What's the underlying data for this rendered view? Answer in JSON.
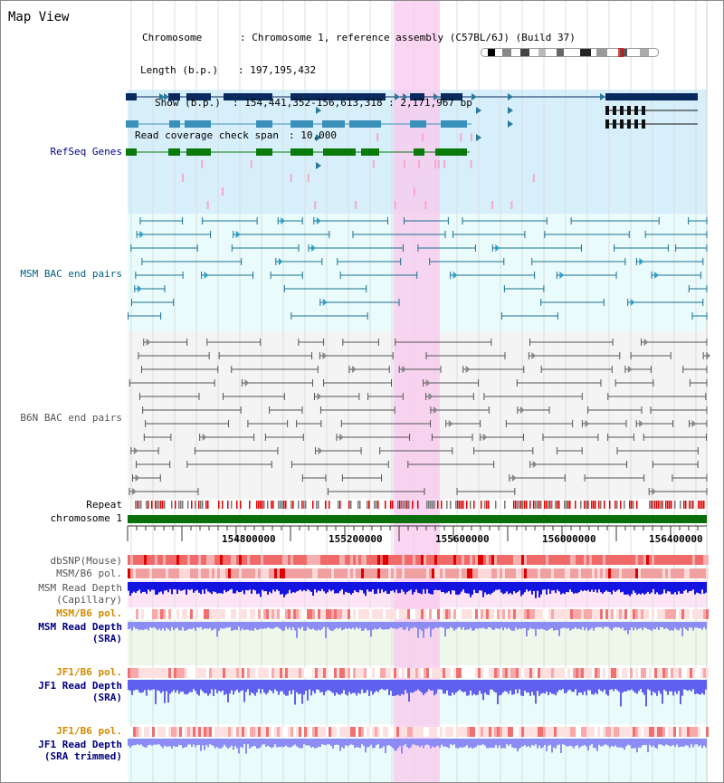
{
  "title": "Map View",
  "info": {
    "chromosome_key": "Chromosome",
    "chromosome_val": ": Chromosome 1, reference assembly (C57BL/6J) (Build 37)",
    "length_key": "Length (b.p.)",
    "length_val": ": 197,195,432",
    "show_key": "Show (b.p.)",
    "show_val": ": 154,441,352-156,613,318 : 2,171,967 bp",
    "span_key": "Read coverage check span",
    "span_val": ": 10,000"
  },
  "tracks": {
    "refseq": "RefSeq Genes",
    "msm_bac": "MSM BAC end pairs",
    "b6n_bac": "B6N BAC end pairs",
    "repeat": "Repeat",
    "chromosome": "chromosome 1",
    "dbsnp": "dbSNP(Mouse)",
    "msm_b6_pol": "MSM/B6 pol.",
    "msm_depth_cap_1": "MSM Read Depth",
    "msm_depth_cap_2": "(Capillary)",
    "msm_b6_pol2": "MSM/B6 pol.",
    "msm_depth_sra_1": "MSM Read Depth",
    "msm_depth_sra_2": "(SRA)",
    "jf1_b6_pol": "JF1/B6 pol.",
    "jf1_depth_sra_1": "JF1 Read Depth",
    "jf1_depth_sra_2": "(SRA)",
    "jf1_b6_pol2": "JF1/B6 pol.",
    "jf1_depth_trim_1": "JF1 Read Depth",
    "jf1_depth_trim_2": "(SRA trimmed)"
  },
  "axis_ticks": [
    "154800000",
    "155200000",
    "155600000",
    "156000000",
    "156400000"
  ],
  "colors": {
    "refseq_dark": "#0a2a5e",
    "refseq_mid": "#3a90b8",
    "refseq_green": "#0a7a0a",
    "msm_bac": "#1a7090",
    "b6n_bac": "#555555",
    "highlight": "#f9c8ee",
    "depth_blue": "#1010e8",
    "depth_light": "#8080f0",
    "pol_red": "#e83030",
    "chrom_green": "#0a6e0a"
  }
}
